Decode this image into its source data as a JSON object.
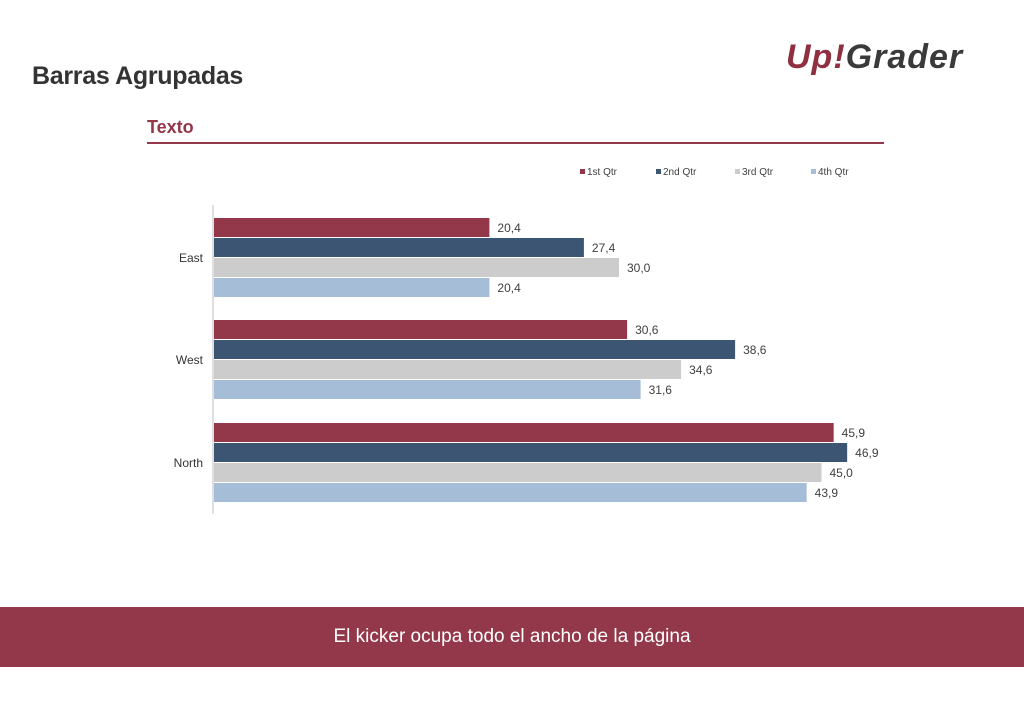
{
  "header": {
    "title": "Barras Agrupadas",
    "logo": "Up!Grader"
  },
  "section": {
    "title": "Texto"
  },
  "chart_data": {
    "type": "bar",
    "orientation": "horizontal",
    "categories": [
      "East",
      "West",
      "North"
    ],
    "series": [
      {
        "name": "1st Qtr",
        "values": [
          20.4,
          30.6,
          45.9
        ],
        "color": "#93374a"
      },
      {
        "name": "2nd Qtr",
        "values": [
          27.4,
          38.6,
          46.9
        ],
        "color": "#3b5573"
      },
      {
        "name": "3rd Qtr",
        "values": [
          30.0,
          34.6,
          45.0
        ],
        "color": "#cccccc"
      },
      {
        "name": "4th Qtr",
        "values": [
          20.4,
          31.6,
          43.9
        ],
        "color": "#a5bdd6"
      }
    ],
    "data_labels": [
      [
        "20,4",
        "30,6",
        "45,9"
      ],
      [
        "27,4",
        "38,6",
        "46,9"
      ],
      [
        "30,0",
        "34,6",
        "45,0"
      ],
      [
        "20,4",
        "31,6",
        "43,9"
      ]
    ],
    "xlim": [
      0,
      50
    ],
    "legend_position": "top-right",
    "grid": false,
    "title": "",
    "xlabel": "",
    "ylabel": ""
  },
  "kicker": {
    "text": "El kicker ocupa todo el ancho de la página"
  }
}
